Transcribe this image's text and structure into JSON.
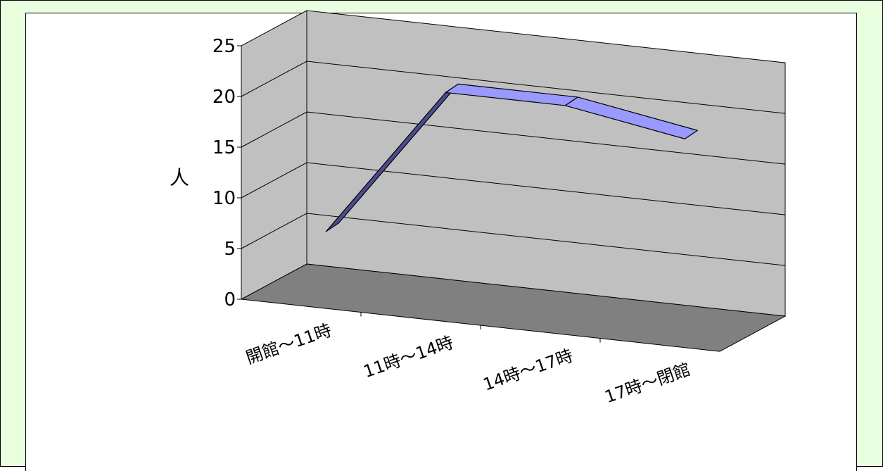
{
  "chart_data": {
    "type": "line",
    "style": "3d-ribbon",
    "categories": [
      "開館～11時",
      "11時～14時",
      "14時～17時",
      "17時～閉館"
    ],
    "values": [
      6,
      21,
      21,
      19
    ],
    "ylabel": "人",
    "ylim": [
      0,
      25
    ],
    "yticks": [
      0,
      5,
      10,
      15,
      20,
      25
    ],
    "grid": true,
    "colors": {
      "ribbon_top": "#9999ff",
      "ribbon_side": "#4b4b8f",
      "wall": "#c0c0c0",
      "floor": "#808080",
      "outer_background": "#e8ffe0"
    }
  }
}
